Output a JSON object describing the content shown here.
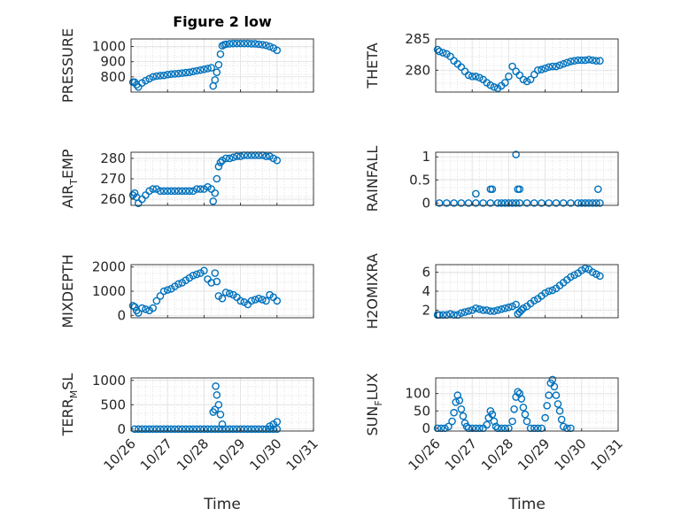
{
  "figure": {
    "title": "Figure 2 low",
    "xlabel": "Time",
    "marker_color": "#0072bd"
  },
  "chart_data": [
    {
      "type": "scatter",
      "panel": "PRESSURE",
      "ylabel": "PRESSURE",
      "ylabel_sub": "",
      "ylim": [
        700,
        1050
      ],
      "yticks": [
        800,
        900,
        1000
      ],
      "xlim": [
        0,
        5
      ],
      "xticks": [
        "10/26",
        "10/27",
        "10/28",
        "10/29",
        "10/30",
        "10/31"
      ],
      "grid": true,
      "x": [
        0.05,
        0.1,
        0.15,
        0.2,
        0.3,
        0.4,
        0.5,
        0.6,
        0.7,
        0.8,
        0.9,
        1.0,
        1.1,
        1.2,
        1.3,
        1.4,
        1.5,
        1.6,
        1.7,
        1.8,
        1.9,
        2.0,
        2.1,
        2.2,
        2.25,
        2.3,
        2.35,
        2.4,
        2.45,
        2.5,
        2.55,
        2.6,
        2.7,
        2.8,
        2.9,
        3.0,
        3.1,
        3.2,
        3.3,
        3.4,
        3.5,
        3.6,
        3.7,
        3.8,
        3.9,
        4.0
      ],
      "y": [
        765,
        765,
        748,
        733,
        760,
        775,
        788,
        800,
        805,
        808,
        810,
        815,
        818,
        820,
        822,
        825,
        828,
        830,
        835,
        840,
        845,
        850,
        855,
        860,
        740,
        780,
        830,
        880,
        950,
        1005,
        1012,
        1015,
        1018,
        1020,
        1020,
        1020,
        1020,
        1020,
        1018,
        1018,
        1015,
        1012,
        1008,
        1000,
        990,
        975
      ]
    },
    {
      "type": "scatter",
      "panel": "THETA",
      "ylabel": "THETA",
      "ylabel_sub": "",
      "ylim": [
        276.5,
        285
      ],
      "yticks": [
        280,
        285
      ],
      "xlim": [
        0,
        5
      ],
      "xticks": [
        "10/26",
        "10/27",
        "10/28",
        "10/29",
        "10/30",
        "10/31"
      ],
      "grid": true,
      "x": [
        0.05,
        0.1,
        0.2,
        0.3,
        0.4,
        0.5,
        0.6,
        0.7,
        0.8,
        0.9,
        1.0,
        1.1,
        1.2,
        1.3,
        1.4,
        1.5,
        1.6,
        1.7,
        1.8,
        1.9,
        2.0,
        2.1,
        2.2,
        2.3,
        2.4,
        2.5,
        2.6,
        2.7,
        2.8,
        2.9,
        3.0,
        3.1,
        3.2,
        3.3,
        3.4,
        3.5,
        3.6,
        3.7,
        3.8,
        3.9,
        4.0,
        4.1,
        4.2,
        4.3,
        4.4,
        4.5
      ],
      "y": [
        283.3,
        283.0,
        282.8,
        282.6,
        282.2,
        281.5,
        281.0,
        280.5,
        279.8,
        279.2,
        279.0,
        279.0,
        278.8,
        278.5,
        278.0,
        277.6,
        277.3,
        277.1,
        277.5,
        278.0,
        279.0,
        280.6,
        279.8,
        279.2,
        278.5,
        278.2,
        278.5,
        279.3,
        280.0,
        280.1,
        280.3,
        280.5,
        280.6,
        280.6,
        280.8,
        281.0,
        281.2,
        281.4,
        281.5,
        281.6,
        281.6,
        281.6,
        281.7,
        281.6,
        281.5,
        281.5
      ]
    },
    {
      "type": "scatter",
      "panel": "AIR_TEMP",
      "ylabel": "AIR",
      "ylabel_sub": "T",
      "ylabel_suffix": "EMP",
      "ylim": [
        257,
        283
      ],
      "yticks": [
        260,
        270,
        280
      ],
      "xlim": [
        0,
        5
      ],
      "xticks": [
        "10/26",
        "10/27",
        "10/28",
        "10/29",
        "10/30",
        "10/31"
      ],
      "grid": true,
      "x": [
        0.05,
        0.1,
        0.15,
        0.2,
        0.3,
        0.4,
        0.5,
        0.6,
        0.7,
        0.8,
        0.9,
        1.0,
        1.1,
        1.2,
        1.3,
        1.4,
        1.5,
        1.6,
        1.7,
        1.8,
        1.9,
        2.0,
        2.1,
        2.2,
        2.25,
        2.3,
        2.35,
        2.4,
        2.45,
        2.5,
        2.6,
        2.7,
        2.8,
        2.9,
        3.0,
        3.1,
        3.2,
        3.3,
        3.4,
        3.5,
        3.6,
        3.7,
        3.8,
        3.9,
        4.0
      ],
      "y": [
        262,
        263,
        261,
        258,
        260,
        262,
        264,
        265,
        265,
        264,
        264,
        264,
        264,
        264,
        264,
        264,
        264,
        264,
        264,
        265,
        265,
        265,
        266,
        265,
        259,
        263,
        270,
        276,
        278,
        279,
        280,
        280,
        280.5,
        281,
        281,
        281.5,
        281.5,
        281.5,
        281.5,
        281.5,
        281.5,
        281,
        281,
        280,
        279
      ]
    },
    {
      "type": "scatter",
      "panel": "RAINFALL",
      "ylabel": "RAINFALL",
      "ylabel_sub": "",
      "ylim": [
        -0.05,
        1.1
      ],
      "yticks": [
        0,
        0.5,
        1
      ],
      "xlim": [
        0,
        5
      ],
      "xticks": [
        "10/26",
        "10/27",
        "10/28",
        "10/29",
        "10/30",
        "10/31"
      ],
      "grid": true,
      "x": [
        0.1,
        0.3,
        0.5,
        0.7,
        0.9,
        1.1,
        1.3,
        1.5,
        1.7,
        1.8,
        1.9,
        2.0,
        2.1,
        2.2,
        2.3,
        2.5,
        2.7,
        2.9,
        3.1,
        3.3,
        3.5,
        3.7,
        3.9,
        4.0,
        4.1,
        4.2,
        4.3,
        4.4,
        4.5,
        1.1,
        1.5,
        1.55,
        2.2,
        2.25,
        2.3,
        4.45
      ],
      "y": [
        0,
        0,
        0,
        0,
        0,
        0,
        0,
        0,
        0,
        0,
        0,
        0,
        0,
        0,
        0,
        0,
        0,
        0,
        0,
        0,
        0,
        0,
        0,
        0,
        0,
        0,
        0,
        0,
        0,
        0.2,
        0.3,
        0.3,
        1.05,
        0.3,
        0.3,
        0.3
      ]
    },
    {
      "type": "scatter",
      "panel": "MIXDEPTH",
      "ylabel": "MIXDEPTH",
      "ylabel_sub": "",
      "ylim": [
        -100,
        2100
      ],
      "yticks": [
        0,
        1000,
        2000
      ],
      "xlim": [
        0,
        5
      ],
      "xticks": [
        "10/26",
        "10/27",
        "10/28",
        "10/29",
        "10/30",
        "10/31"
      ],
      "grid": true,
      "x": [
        0.05,
        0.1,
        0.15,
        0.2,
        0.3,
        0.4,
        0.5,
        0.6,
        0.7,
        0.8,
        0.9,
        1.0,
        1.1,
        1.2,
        1.3,
        1.4,
        1.5,
        1.6,
        1.7,
        1.8,
        1.9,
        2.0,
        2.1,
        2.2,
        2.3,
        2.35,
        2.4,
        2.5,
        2.6,
        2.7,
        2.8,
        2.9,
        3.0,
        3.1,
        3.2,
        3.3,
        3.4,
        3.5,
        3.6,
        3.7,
        3.8,
        3.9,
        4.0
      ],
      "y": [
        400,
        350,
        200,
        100,
        300,
        250,
        200,
        300,
        600,
        800,
        1000,
        1050,
        1100,
        1200,
        1300,
        1350,
        1450,
        1550,
        1650,
        1700,
        1750,
        1850,
        1500,
        1350,
        1750,
        1400,
        800,
        700,
        950,
        900,
        850,
        750,
        600,
        550,
        450,
        600,
        650,
        700,
        650,
        600,
        850,
        750,
        600
      ]
    },
    {
      "type": "scatter",
      "panel": "H2OMIXRA",
      "ylabel": "H2OMIXRA",
      "ylabel_sub": "",
      "ylim": [
        1.2,
        6.8
      ],
      "yticks": [
        2,
        4,
        6
      ],
      "xlim": [
        0,
        5
      ],
      "xticks": [
        "10/26",
        "10/27",
        "10/28",
        "10/29",
        "10/30",
        "10/31"
      ],
      "grid": true,
      "x": [
        0.05,
        0.1,
        0.2,
        0.3,
        0.4,
        0.5,
        0.6,
        0.7,
        0.8,
        0.9,
        1.0,
        1.1,
        1.2,
        1.3,
        1.4,
        1.5,
        1.6,
        1.7,
        1.8,
        1.9,
        2.0,
        2.1,
        2.2,
        2.25,
        2.3,
        2.35,
        2.4,
        2.5,
        2.6,
        2.7,
        2.8,
        2.9,
        3.0,
        3.1,
        3.2,
        3.3,
        3.4,
        3.5,
        3.6,
        3.7,
        3.8,
        3.9,
        4.0,
        4.1,
        4.2,
        4.3,
        4.4,
        4.5
      ],
      "y": [
        1.5,
        1.5,
        1.5,
        1.5,
        1.6,
        1.5,
        1.5,
        1.7,
        1.8,
        1.9,
        2.0,
        2.2,
        2.1,
        2.0,
        2.0,
        1.9,
        1.9,
        2.0,
        2.1,
        2.2,
        2.3,
        2.4,
        2.6,
        1.6,
        1.8,
        2.0,
        2.2,
        2.4,
        2.7,
        3.0,
        3.2,
        3.5,
        3.8,
        4.0,
        4.1,
        4.3,
        4.6,
        4.9,
        5.2,
        5.5,
        5.7,
        5.9,
        6.2,
        6.4,
        6.3,
        6.0,
        5.8,
        5.6
      ]
    },
    {
      "type": "scatter",
      "panel": "TERR_MSL",
      "ylabel": "TERR",
      "ylabel_sub": "M",
      "ylabel_suffix": "SL",
      "ylim": [
        -40,
        1050
      ],
      "yticks": [
        0,
        500,
        1000
      ],
      "xlim": [
        0,
        5
      ],
      "xticks": [
        "10/26",
        "10/27",
        "10/28",
        "10/29",
        "10/30",
        "10/31"
      ],
      "grid": true,
      "x": [
        0.1,
        0.2,
        0.3,
        0.4,
        0.5,
        0.6,
        0.7,
        0.8,
        0.9,
        1.0,
        1.1,
        1.2,
        1.3,
        1.4,
        1.5,
        1.6,
        1.7,
        1.8,
        1.9,
        2.0,
        2.1,
        2.2,
        2.3,
        2.4,
        2.5,
        2.6,
        2.7,
        2.8,
        2.9,
        3.0,
        3.1,
        3.2,
        3.3,
        3.4,
        3.5,
        3.6,
        3.7,
        3.8,
        3.9,
        4.0,
        2.25,
        2.3,
        2.32,
        2.35,
        2.4,
        2.45,
        2.5,
        3.8,
        3.9,
        4.0
      ],
      "y": [
        0,
        0,
        0,
        0,
        0,
        0,
        0,
        0,
        0,
        0,
        0,
        0,
        0,
        0,
        0,
        0,
        0,
        0,
        0,
        0,
        0,
        0,
        0,
        0,
        0,
        0,
        0,
        0,
        0,
        0,
        0,
        0,
        0,
        0,
        0,
        0,
        0,
        0,
        0,
        0,
        350,
        400,
        880,
        700,
        500,
        300,
        100,
        60,
        100,
        150
      ]
    },
    {
      "type": "scatter",
      "panel": "SUN_FLUX",
      "ylabel": "SUN",
      "ylabel_sub": "F",
      "ylabel_suffix": "LUX",
      "ylim": [
        -8,
        145
      ],
      "yticks": [
        0,
        50,
        100
      ],
      "xlim": [
        0,
        5
      ],
      "xticks": [
        "10/26",
        "10/27",
        "10/28",
        "10/29",
        "10/30",
        "10/31"
      ],
      "grid": true,
      "x": [
        0.05,
        0.15,
        0.25,
        0.35,
        0.45,
        0.5,
        0.55,
        0.6,
        0.65,
        0.7,
        0.75,
        0.8,
        0.85,
        0.9,
        1.0,
        1.1,
        1.2,
        1.3,
        1.4,
        1.45,
        1.5,
        1.55,
        1.6,
        1.65,
        1.7,
        1.8,
        1.9,
        2.0,
        2.1,
        2.15,
        2.2,
        2.25,
        2.3,
        2.35,
        2.4,
        2.45,
        2.5,
        2.6,
        2.7,
        2.8,
        2.9,
        3.0,
        3.05,
        3.1,
        3.15,
        3.2,
        3.25,
        3.3,
        3.35,
        3.4,
        3.45,
        3.5,
        3.6,
        3.7
      ],
      "y": [
        0,
        0,
        0,
        5,
        20,
        45,
        75,
        95,
        80,
        55,
        35,
        15,
        5,
        0,
        0,
        0,
        0,
        0,
        10,
        30,
        50,
        40,
        20,
        5,
        0,
        0,
        0,
        0,
        20,
        55,
        90,
        105,
        100,
        85,
        60,
        40,
        20,
        0,
        0,
        0,
        0,
        30,
        65,
        95,
        130,
        140,
        120,
        95,
        70,
        50,
        25,
        5,
        0,
        0
      ]
    }
  ]
}
